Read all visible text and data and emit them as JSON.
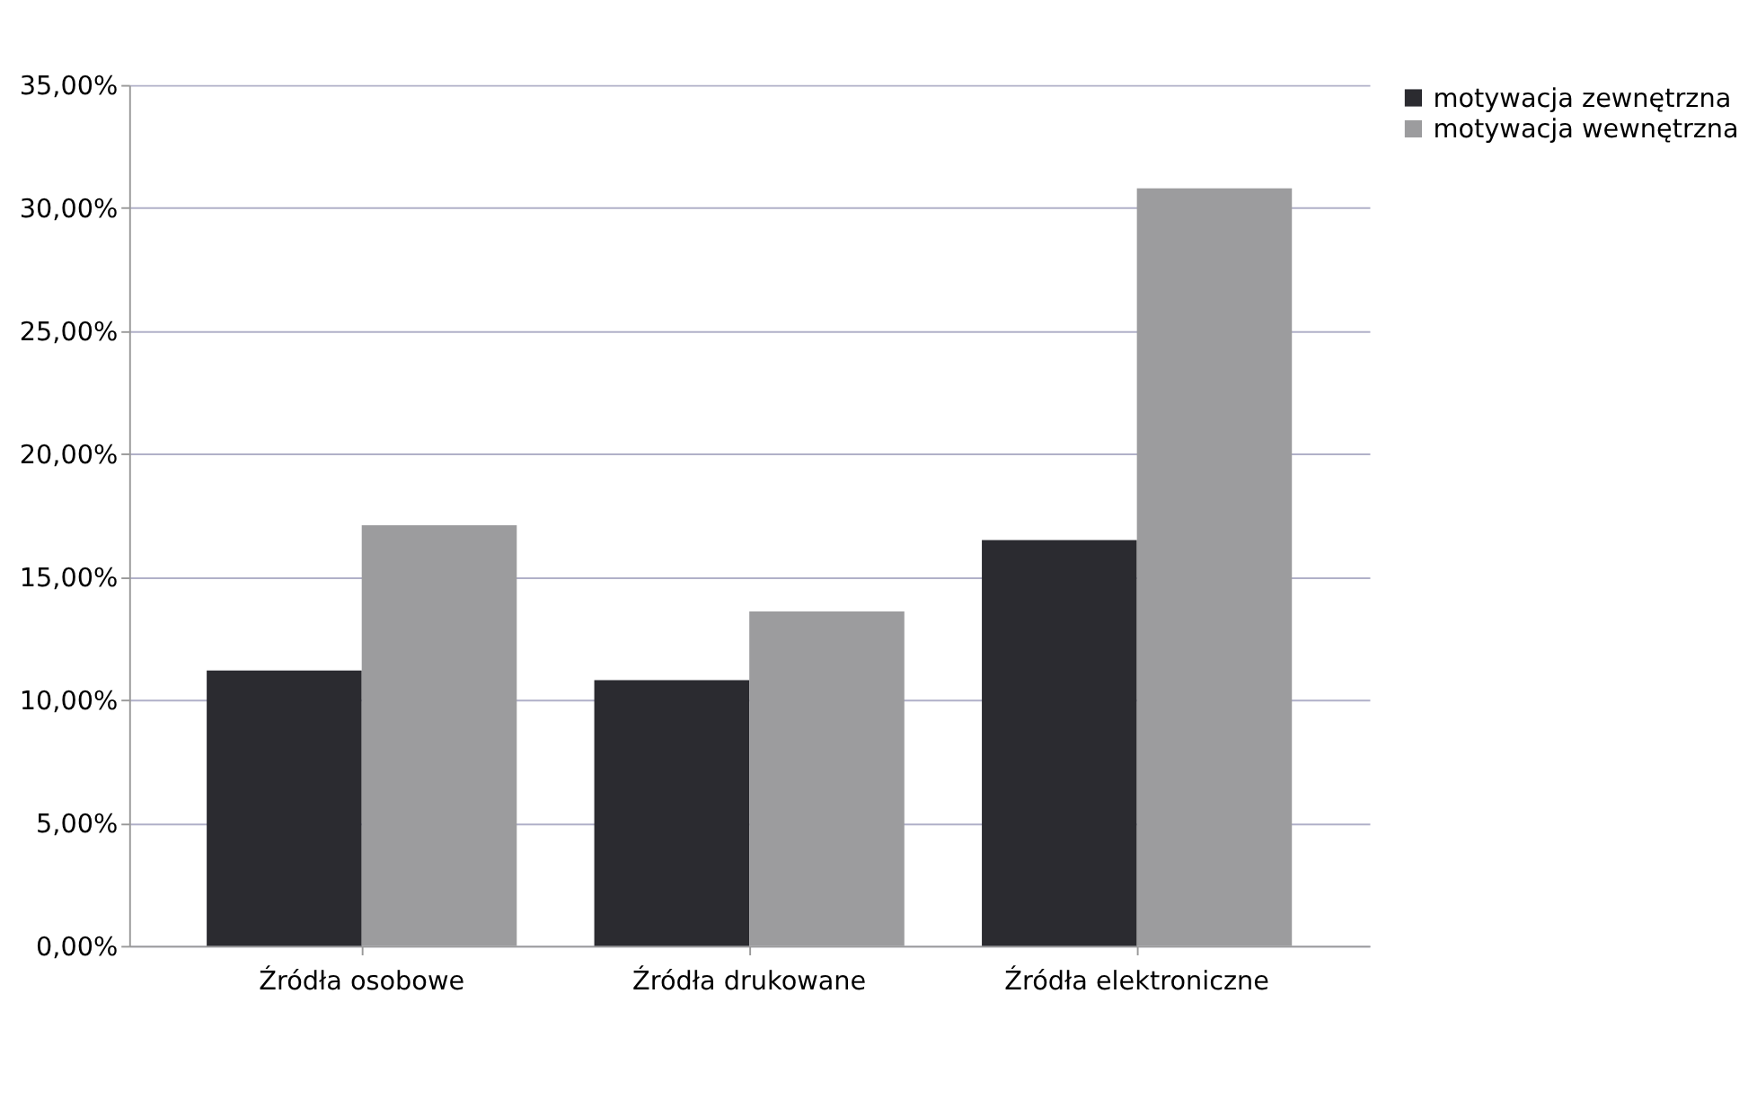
{
  "chart_data": {
    "type": "bar",
    "categories": [
      "Źródła osobowe",
      "Źródła drukowane",
      "Źródła elektroniczne"
    ],
    "series": [
      {
        "name": "motywacja zewnętrzna",
        "color": "#2b2b30",
        "values": [
          11.2,
          10.8,
          16.5
        ]
      },
      {
        "name": "motywacja wewnętrzna",
        "color": "#9c9c9e",
        "values": [
          17.1,
          13.6,
          30.8
        ]
      }
    ],
    "ylim": [
      0,
      35
    ],
    "yticks": [
      {
        "value": 0,
        "label": "0,00%"
      },
      {
        "value": 5,
        "label": "5,00%"
      },
      {
        "value": 10,
        "label": "10,00%"
      },
      {
        "value": 15,
        "label": "15,00%"
      },
      {
        "value": 20,
        "label": "20,00%"
      },
      {
        "value": 25,
        "label": "25,00%"
      },
      {
        "value": 30,
        "label": "30,00%"
      },
      {
        "value": 35,
        "label": "35,00%"
      }
    ],
    "grid": "y",
    "legend": "right"
  }
}
